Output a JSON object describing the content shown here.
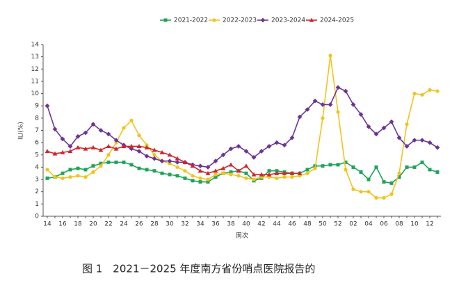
{
  "chart_data": {
    "type": "line",
    "y_label": "ILI(%)",
    "x_label": "周次",
    "caption": "图 1　2021－2025 年度南方省份哨点医院报告的",
    "categories": [
      "14",
      null,
      "16",
      null,
      "18",
      null,
      "20",
      null,
      "22",
      null,
      "24",
      null,
      "26",
      null,
      "28",
      null,
      "30",
      null,
      "32",
      null,
      "34",
      null,
      "36",
      null,
      "38",
      null,
      "40",
      null,
      "42",
      null,
      "44",
      null,
      "46",
      null,
      "48",
      null,
      "50",
      null,
      "52",
      null,
      "02",
      null,
      "04",
      null,
      "06",
      null,
      "08",
      null,
      "10",
      null,
      "12",
      null
    ],
    "ylim": [
      0,
      14
    ],
    "yticks": [
      0,
      1,
      2,
      3,
      4,
      5,
      6,
      7,
      8,
      9,
      10,
      11,
      12,
      13,
      14
    ],
    "series": [
      {
        "name": "2021-2022",
        "color": "#1fa35a",
        "marker": "square",
        "values": [
          3.1,
          3.2,
          3.5,
          3.8,
          3.9,
          3.8,
          4.1,
          4.3,
          4.4,
          4.4,
          4.4,
          4.2,
          3.9,
          3.8,
          3.7,
          3.5,
          3.4,
          3.3,
          3.1,
          2.9,
          2.8,
          2.8,
          3.2,
          3.5,
          3.6,
          3.7,
          3.5,
          2.9,
          3.1,
          3.7,
          3.7,
          3.6,
          3.5,
          3.5,
          3.8,
          4.1,
          4.1,
          4.2,
          4.2,
          4.4,
          4.0,
          3.6,
          3.0,
          4.0,
          2.8,
          2.7,
          3.2,
          4.0,
          4.0,
          4.4,
          3.8,
          3.6
        ]
      },
      {
        "name": "2022-2023",
        "color": "#f2c31b",
        "marker": "circle",
        "values": [
          3.8,
          3.2,
          3.1,
          3.2,
          3.3,
          3.2,
          3.6,
          4.1,
          5.0,
          6.0,
          7.2,
          7.8,
          6.6,
          5.8,
          5.0,
          4.5,
          4.3,
          4.0,
          3.7,
          3.3,
          3.1,
          3.0,
          3.4,
          3.5,
          3.4,
          3.3,
          3.1,
          3.0,
          3.2,
          3.2,
          3.1,
          3.2,
          3.2,
          3.3,
          3.5,
          3.9,
          8.0,
          13.1,
          8.5,
          3.8,
          2.2,
          2.0,
          2.0,
          1.5,
          1.5,
          1.8,
          3.5,
          7.5,
          10.0,
          9.9,
          10.3,
          10.2
        ]
      },
      {
        "name": "2023-2024",
        "color": "#6a3596",
        "marker": "diamond",
        "values": [
          9.0,
          7.1,
          6.3,
          5.7,
          6.5,
          6.8,
          7.5,
          7.0,
          6.7,
          6.2,
          5.8,
          5.5,
          5.3,
          4.9,
          4.7,
          4.5,
          4.5,
          4.4,
          4.4,
          4.2,
          4.1,
          4.0,
          4.5,
          5.0,
          5.5,
          5.7,
          5.3,
          4.8,
          5.3,
          5.7,
          6.0,
          5.8,
          6.4,
          8.1,
          8.7,
          9.4,
          9.1,
          9.1,
          10.5,
          10.2,
          9.1,
          8.3,
          7.3,
          6.7,
          7.2,
          7.7,
          6.4,
          5.7,
          6.2,
          6.2,
          6.0,
          5.6
        ]
      },
      {
        "name": "2024-2025",
        "color": "#d0262b",
        "marker": "triangle",
        "values": [
          5.3,
          5.1,
          5.2,
          5.3,
          5.6,
          5.5,
          5.6,
          5.4,
          5.7,
          5.5,
          5.7,
          5.7,
          5.7,
          5.6,
          5.4,
          5.2,
          5.0,
          4.7,
          4.4,
          4.1,
          3.7,
          3.5,
          3.7,
          3.9,
          4.2,
          3.7,
          4.1,
          3.4,
          3.4,
          3.4,
          3.5,
          3.5,
          3.5,
          3.5,
          null,
          null,
          null,
          null,
          null,
          null,
          null,
          null,
          null,
          null,
          null,
          null,
          null,
          null,
          null,
          null,
          null,
          null
        ]
      }
    ]
  }
}
